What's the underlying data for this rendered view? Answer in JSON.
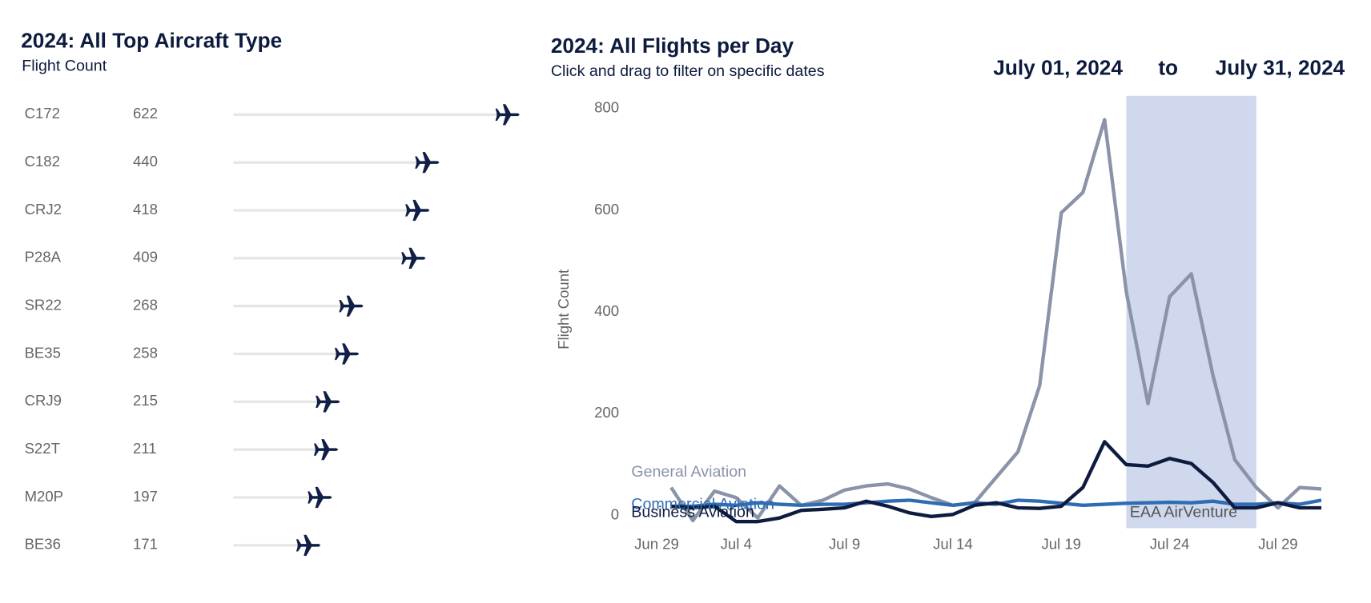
{
  "chart_data": [
    {
      "type": "lollipop",
      "title": "2024: All Top Aircraft Type",
      "subtitle": "Flight Count",
      "categories": [
        "C172",
        "C182",
        "CRJ2",
        "P28A",
        "SR22",
        "BE35",
        "CRJ9",
        "S22T",
        "M20P",
        "BE36"
      ],
      "values": [
        622,
        440,
        418,
        409,
        268,
        258,
        215,
        211,
        197,
        171
      ],
      "color": "#0f1f45",
      "stem_color": "#e6e6e6"
    },
    {
      "type": "line",
      "title": "2024: All Flights per Day",
      "subtitle": "Click and drag to filter on specific dates",
      "filter_start": "July 01, 2024",
      "filter_separator": "to",
      "filter_end": "July 31, 2024",
      "y_label": "Flight Count",
      "x": [
        "2024-07-01",
        "2024-07-02",
        "2024-07-03",
        "2024-07-04",
        "2024-07-05",
        "2024-07-06",
        "2024-07-07",
        "2024-07-08",
        "2024-07-09",
        "2024-07-10",
        "2024-07-11",
        "2024-07-12",
        "2024-07-13",
        "2024-07-14",
        "2024-07-15",
        "2024-07-16",
        "2024-07-17",
        "2024-07-18",
        "2024-07-19",
        "2024-07-20",
        "2024-07-21",
        "2024-07-22",
        "2024-07-23",
        "2024-07-24",
        "2024-07-25",
        "2024-07-26",
        "2024-07-27",
        "2024-07-28",
        "2024-07-29",
        "2024-07-30",
        "2024-07-31"
      ],
      "xlim": [
        "2024-06-29",
        "2024-08-01"
      ],
      "xticks": [
        {
          "value": "2024-06-29",
          "label": "Jun 29"
        },
        {
          "value": "2024-07-04",
          "label": "Jul 4"
        },
        {
          "value": "2024-07-09",
          "label": "Jul 9"
        },
        {
          "value": "2024-07-14",
          "label": "Jul 14"
        },
        {
          "value": "2024-07-19",
          "label": "Jul 19"
        },
        {
          "value": "2024-07-24",
          "label": "Jul 24"
        },
        {
          "value": "2024-07-29",
          "label": "Jul 29"
        }
      ],
      "ylim": [
        -25,
        825
      ],
      "yticks": [
        0,
        200,
        400,
        600,
        800
      ],
      "grid": false,
      "highlight": {
        "label": "EAA AirVenture",
        "start": "2024-07-22",
        "end": "2024-07-28",
        "color": "#cfd8ec"
      },
      "series": [
        {
          "name": "General Aviation",
          "color": "#8a93a8",
          "values": [
            55,
            -10,
            48,
            35,
            -5,
            58,
            20,
            30,
            50,
            58,
            62,
            52,
            35,
            20,
            25,
            75,
            125,
            255,
            595,
            635,
            778,
            440,
            220,
            430,
            475,
            275,
            110,
            55,
            15,
            55,
            52
          ]
        },
        {
          "name": "Commercial Aviation",
          "color": "#2e6db4",
          "values": [
            18,
            18,
            22,
            20,
            25,
            22,
            20,
            22,
            22,
            25,
            28,
            30,
            25,
            20,
            25,
            22,
            30,
            28,
            24,
            20,
            22,
            24,
            25,
            26,
            25,
            28,
            22,
            22,
            25,
            22,
            30
          ]
        },
        {
          "name": "Business Aviation",
          "color": "#0d1b3e",
          "values": [
            18,
            15,
            18,
            -12,
            -12,
            -5,
            10,
            12,
            15,
            28,
            18,
            5,
            -2,
            2,
            20,
            25,
            15,
            14,
            18,
            55,
            145,
            100,
            97,
            112,
            102,
            65,
            15,
            15,
            25,
            15,
            15
          ]
        }
      ]
    }
  ]
}
